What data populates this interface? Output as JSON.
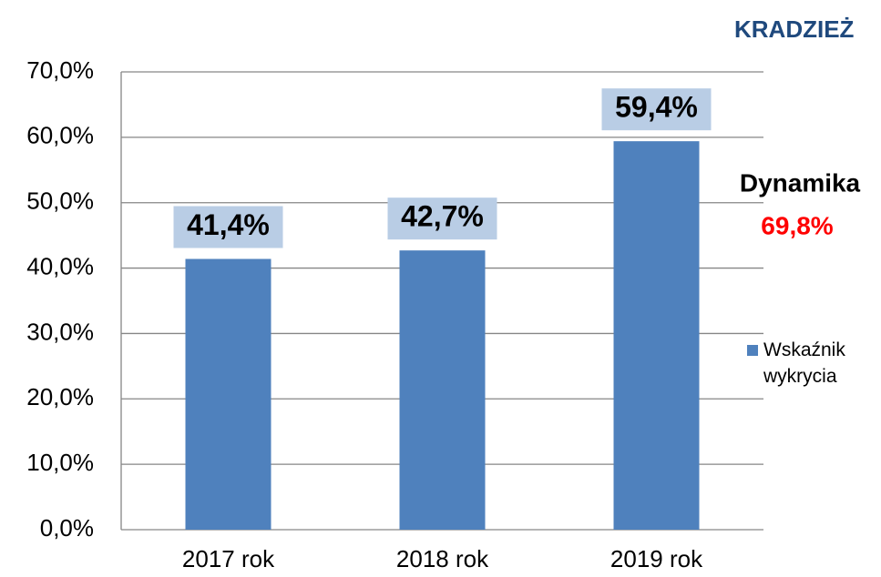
{
  "chart_data": {
    "type": "bar",
    "title": "KRADZIEŻ",
    "categories": [
      "2017 rok",
      "2018 rok",
      "2019 rok"
    ],
    "series": [
      {
        "name": "Wskaźnik wykrycia",
        "color": "#4f81bd",
        "values": [
          41.4,
          42.7,
          59.4
        ],
        "value_labels": [
          "41,4%",
          "42,7%",
          "59,4%"
        ]
      }
    ],
    "ylim": [
      0,
      70
    ],
    "yticks": [
      {
        "value": 0,
        "label": "0,0%"
      },
      {
        "value": 10,
        "label": "10,0%"
      },
      {
        "value": 20,
        "label": "20,0%"
      },
      {
        "value": 30,
        "label": "30,0%"
      },
      {
        "value": 40,
        "label": "40,0%"
      },
      {
        "value": 50,
        "label": "50,0%"
      },
      {
        "value": 60,
        "label": "60,0%"
      },
      {
        "value": 70,
        "label": "70,0%"
      }
    ],
    "grid": true,
    "legend": "right",
    "annotations": [
      "Dynamika",
      "69,8%"
    ]
  }
}
